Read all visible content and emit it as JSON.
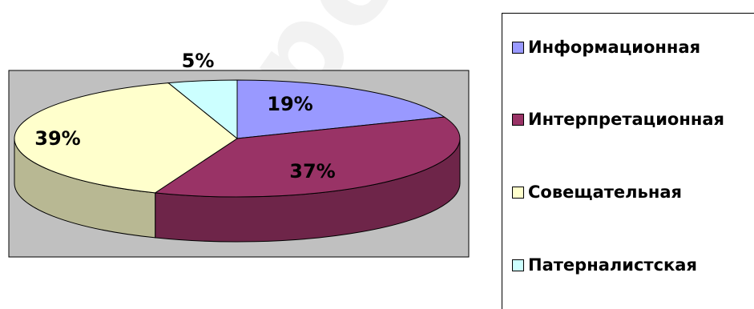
{
  "chart_data": {
    "type": "pie",
    "categories": [
      "Информационная",
      "Интерпретационная",
      "Совещательная",
      "Патерналистская"
    ],
    "values": [
      19,
      37,
      39,
      5
    ],
    "value_labels": [
      "19%",
      "37%",
      "39%",
      "5%"
    ],
    "colors": [
      "#9999ff",
      "#993366",
      "#ffffcc",
      "#ccffff"
    ],
    "legend_position": "right",
    "is_3d": true,
    "plot_area_background": "#c0c0c0"
  }
}
